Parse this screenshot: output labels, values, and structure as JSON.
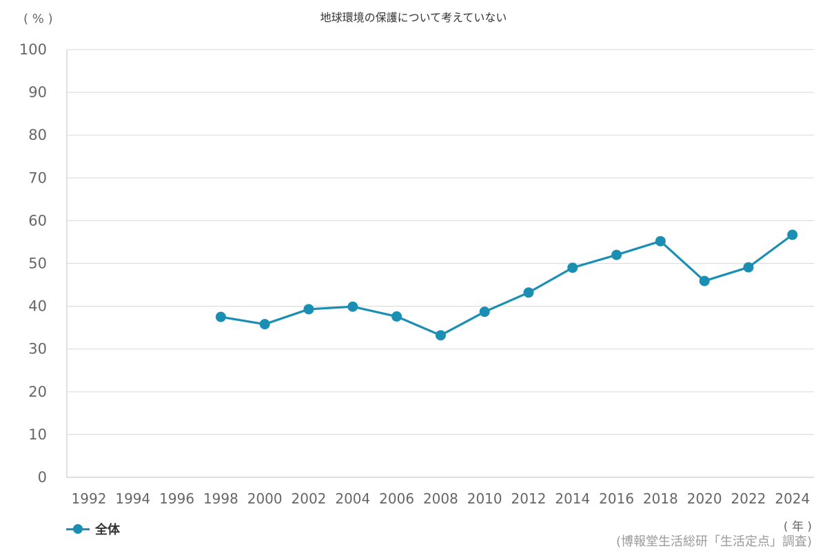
{
  "chart_data": {
    "type": "line",
    "title": "地球環境の保護について考えていない",
    "y_unit": "( % )",
    "x_unit": "( 年 )",
    "source": "(博報堂生活総研「生活定点」調査)",
    "categories": [
      "1992",
      "1994",
      "1996",
      "1998",
      "2000",
      "2002",
      "2004",
      "2006",
      "2008",
      "2010",
      "2012",
      "2014",
      "2016",
      "2018",
      "2020",
      "2022",
      "2024"
    ],
    "ylim": [
      0,
      100
    ],
    "yticks": [
      0,
      10,
      20,
      30,
      40,
      50,
      60,
      70,
      80,
      90,
      100
    ],
    "grid": true,
    "legend_position": "bottom-left",
    "series": [
      {
        "name": "全体",
        "color": "#1a8fb3",
        "values": [
          null,
          null,
          null,
          37.5,
          35.8,
          39.3,
          39.9,
          37.6,
          33.2,
          38.7,
          43.2,
          49.0,
          52.0,
          55.2,
          45.9,
          49.1,
          56.7
        ]
      }
    ]
  }
}
